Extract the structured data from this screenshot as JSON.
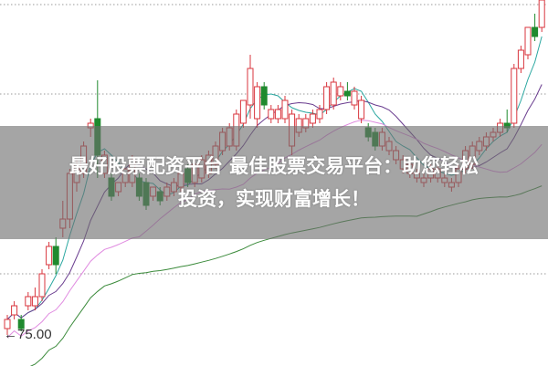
{
  "banner": {
    "line1": "最好股票配资平台 最佳股票交易平台：助您轻松",
    "line2": "投资，实现财富增长！"
  },
  "chart_data": {
    "type": "candlestick",
    "low_marker_label": "←75.00",
    "low_marker_value": 75.0,
    "ylim": [
      71.6,
      111.7
    ],
    "grid": "horizontal dotted",
    "colors": {
      "up": "#d9363e",
      "down": "#1f8a2e",
      "ma5": "#2aa7a0",
      "ma10": "#6a3d8f",
      "ma20": "#e08ae0",
      "ma60": "#3a8a3a",
      "grid": "#999999"
    },
    "moving_averages": [
      5,
      10,
      20,
      60
    ],
    "ohlc": [
      [
        75.7,
        77.2,
        75.0,
        76.7
      ],
      [
        77.2,
        78.7,
        76.7,
        78.2
      ],
      [
        76.7,
        77.2,
        75.4,
        75.7
      ],
      [
        78.2,
        79.7,
        77.7,
        79.2
      ],
      [
        78.2,
        80.2,
        77.7,
        79.2
      ],
      [
        79.2,
        82.2,
        78.7,
        81.7
      ],
      [
        82.7,
        85.2,
        82.2,
        84.7
      ],
      [
        84.7,
        85.7,
        81.7,
        82.7
      ],
      [
        86.7,
        89.7,
        85.7,
        87.7
      ],
      [
        87.7,
        93.2,
        86.7,
        92.7
      ],
      [
        91.7,
        94.2,
        90.7,
        93.7
      ],
      [
        92.7,
        96.2,
        92.2,
        95.7
      ],
      [
        97.7,
        98.7,
        96.7,
        98.2
      ],
      [
        98.7,
        102.9,
        92.2,
        94.7
      ],
      [
        92.7,
        95.2,
        92.2,
        94.7
      ],
      [
        92.2,
        92.7,
        89.7,
        90.2
      ],
      [
        90.7,
        91.7,
        90.2,
        91.7
      ],
      [
        91.7,
        93.2,
        91.2,
        93.2
      ],
      [
        91.7,
        94.7,
        91.2,
        94.2
      ],
      [
        92.2,
        92.7,
        89.7,
        90.2
      ],
      [
        91.7,
        92.2,
        88.7,
        89.2
      ],
      [
        90.2,
        91.2,
        89.7,
        91.2
      ],
      [
        90.7,
        91.2,
        89.2,
        89.7
      ],
      [
        90.2,
        91.7,
        89.7,
        91.2
      ],
      [
        90.7,
        92.2,
        90.2,
        91.7
      ],
      [
        91.2,
        93.2,
        90.7,
        92.7
      ],
      [
        93.2,
        93.7,
        91.2,
        91.7
      ],
      [
        91.7,
        94.2,
        91.2,
        93.7
      ],
      [
        92.2,
        94.7,
        91.7,
        94.2
      ],
      [
        92.7,
        95.2,
        92.2,
        94.7
      ],
      [
        93.7,
        96.2,
        93.2,
        95.7
      ],
      [
        95.2,
        97.7,
        94.7,
        97.2
      ],
      [
        95.7,
        98.2,
        95.2,
        97.7
      ],
      [
        95.7,
        99.7,
        95.2,
        99.2
      ],
      [
        98.2,
        100.7,
        97.7,
        100.7
      ],
      [
        100.2,
        105.7,
        98.7,
        104.2
      ],
      [
        98.7,
        102.7,
        97.7,
        102.2
      ],
      [
        102.2,
        102.7,
        99.7,
        100.2
      ],
      [
        98.7,
        100.2,
        98.2,
        99.7
      ],
      [
        98.7,
        100.2,
        98.2,
        99.7
      ],
      [
        98.7,
        101.2,
        98.2,
        100.7
      ],
      [
        95.7,
        99.7,
        94.7,
        99.2
      ],
      [
        97.2,
        99.2,
        96.7,
        98.7
      ],
      [
        97.7,
        99.2,
        97.2,
        98.7
      ],
      [
        98.2,
        99.7,
        97.7,
        99.2
      ],
      [
        98.7,
        100.2,
        98.2,
        99.7
      ],
      [
        99.7,
        102.7,
        99.2,
        102.2
      ],
      [
        100.2,
        103.2,
        99.7,
        102.7
      ],
      [
        101.2,
        102.7,
        100.7,
        102.2
      ],
      [
        101.7,
        102.7,
        100.7,
        101.2
      ],
      [
        100.2,
        102.2,
        99.7,
        101.7
      ],
      [
        98.7,
        101.2,
        98.2,
        100.7
      ],
      [
        97.7,
        98.2,
        96.2,
        96.7
      ],
      [
        97.2,
        97.7,
        95.2,
        95.7
      ],
      [
        95.7,
        97.7,
        95.2,
        97.2
      ],
      [
        95.2,
        96.7,
        94.7,
        96.2
      ],
      [
        94.2,
        95.7,
        93.7,
        95.2
      ],
      [
        93.2,
        94.7,
        92.7,
        94.2
      ],
      [
        92.7,
        94.2,
        92.2,
        93.7
      ],
      [
        92.2,
        93.2,
        91.7,
        92.7
      ],
      [
        91.7,
        92.7,
        91.2,
        92.2
      ],
      [
        92.2,
        93.7,
        91.7,
        93.2
      ],
      [
        92.2,
        93.7,
        91.7,
        93.2
      ],
      [
        91.7,
        92.7,
        91.2,
        92.2
      ],
      [
        91.2,
        92.2,
        90.7,
        91.7
      ],
      [
        91.7,
        93.7,
        91.2,
        93.2
      ],
      [
        93.2,
        95.7,
        92.7,
        95.2
      ],
      [
        93.7,
        96.2,
        93.2,
        95.7
      ],
      [
        95.2,
        96.7,
        94.7,
        96.2
      ],
      [
        95.7,
        97.2,
        95.2,
        96.7
      ],
      [
        96.7,
        97.7,
        96.2,
        97.2
      ],
      [
        97.2,
        98.7,
        96.7,
        98.2
      ],
      [
        98.2,
        99.7,
        97.2,
        97.7
      ],
      [
        98.2,
        104.7,
        97.7,
        104.2
      ],
      [
        104.2,
        106.7,
        103.7,
        106.2
      ],
      [
        105.7,
        108.7,
        105.2,
        108.7
      ],
      [
        108.7,
        110.2,
        107.2,
        107.7
      ],
      [
        108.7,
        111.7,
        108.2,
        111.7
      ]
    ]
  }
}
